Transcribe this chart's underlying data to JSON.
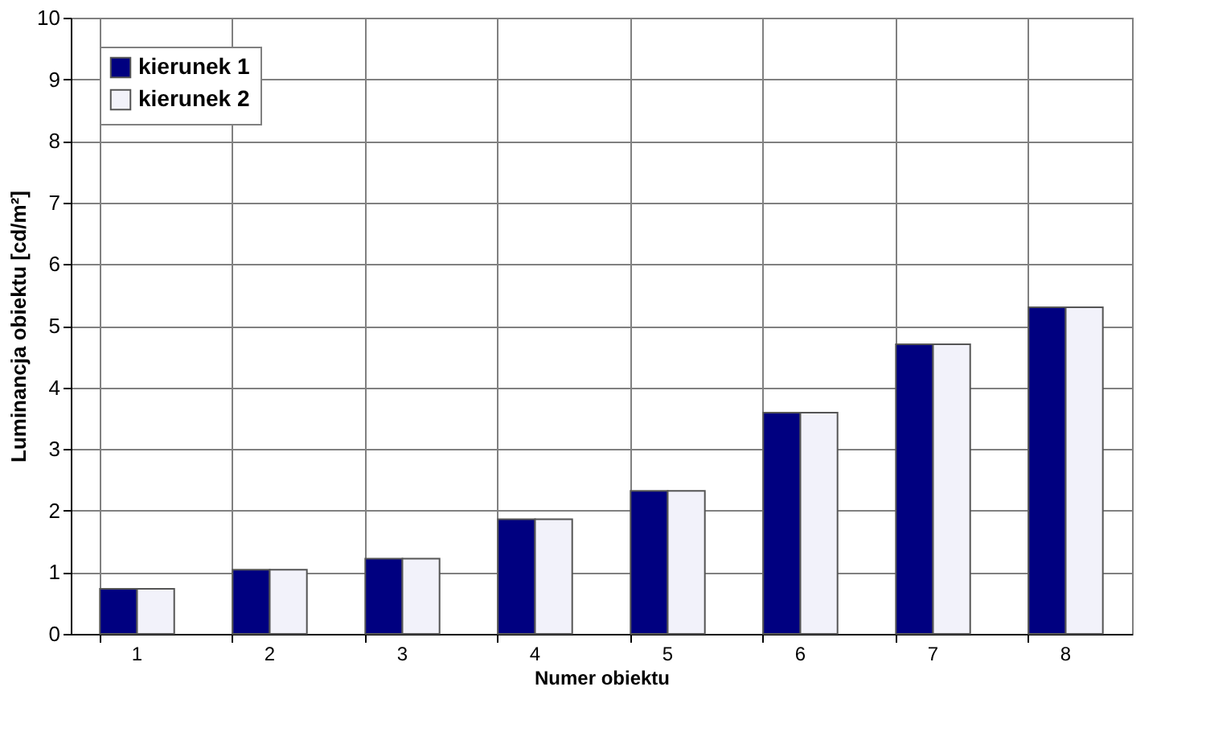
{
  "chart_data": {
    "type": "bar",
    "xlabel": "Numer obiektu",
    "ylabel": "Luminancja obiektu [cd/m²]",
    "categories": [
      "1",
      "2",
      "3",
      "4",
      "5",
      "6",
      "7",
      "8"
    ],
    "series": [
      {
        "name": "kierunek 1",
        "color": "#000080",
        "values": [
          0.73,
          1.04,
          1.22,
          1.86,
          2.32,
          3.59,
          4.7,
          5.3
        ]
      },
      {
        "name": "kierunek 2",
        "color": "#f2f2fa",
        "values": [
          0.73,
          1.04,
          1.22,
          1.86,
          2.32,
          3.59,
          4.7,
          5.3
        ]
      }
    ],
    "ylim": [
      0,
      10
    ],
    "yticks": [
      0,
      1,
      2,
      3,
      4,
      5,
      6,
      7,
      8,
      9,
      10
    ],
    "grid": true,
    "legend": "top left"
  }
}
